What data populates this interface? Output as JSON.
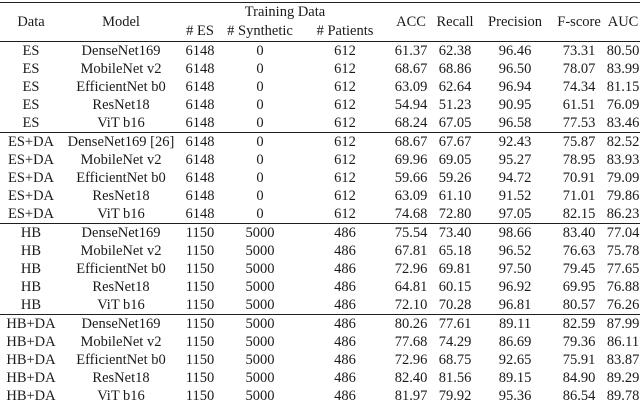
{
  "accent_text_color": "#1a1a1a",
  "background_color": "#ffffff",
  "table": {
    "header": {
      "data": "Data",
      "model": "Model",
      "training_data": "Training Data",
      "num_es": "# ES",
      "num_synthetic": "# Synthetic",
      "num_patients": "# Patients",
      "acc": "ACC",
      "recall": "Recall",
      "precision": "Precision",
      "fscore": "F-score",
      "auc": "AUC"
    },
    "column_keys": [
      "data",
      "model",
      "num_es",
      "num_synthetic",
      "num_patients",
      "acc",
      "recall",
      "precision",
      "fscore",
      "auc"
    ],
    "groups": [
      {
        "name": "ES",
        "rows": [
          [
            "ES",
            "DenseNet169",
            "6148",
            "0",
            "612",
            "61.37",
            "62.38",
            "96.46",
            "73.31",
            "80.50"
          ],
          [
            "ES",
            "MobileNet v2",
            "6148",
            "0",
            "612",
            "68.67",
            "68.86",
            "96.50",
            "78.07",
            "83.99"
          ],
          [
            "ES",
            "EfficientNet b0",
            "6148",
            "0",
            "612",
            "63.09",
            "62.64",
            "96.94",
            "74.34",
            "81.15"
          ],
          [
            "ES",
            "ResNet18",
            "6148",
            "0",
            "612",
            "54.94",
            "51.23",
            "90.95",
            "61.51",
            "76.09"
          ],
          [
            "ES",
            "ViT b16",
            "6148",
            "0",
            "612",
            "68.24",
            "67.05",
            "96.58",
            "77.53",
            "83.46"
          ]
        ]
      },
      {
        "name": "ES+DA",
        "rows": [
          [
            "ES+DA",
            "DenseNet169 [26]",
            "6148",
            "0",
            "612",
            "68.67",
            "67.67",
            "92.43",
            "75.87",
            "82.52"
          ],
          [
            "ES+DA",
            "MobileNet v2",
            "6148",
            "0",
            "612",
            "69.96",
            "69.05",
            "95.27",
            "78.95",
            "83.93"
          ],
          [
            "ES+DA",
            "EfficientNet b0",
            "6148",
            "0",
            "612",
            "59.66",
            "59.26",
            "94.72",
            "70.91",
            "79.09"
          ],
          [
            "ES+DA",
            "ResNet18",
            "6148",
            "0",
            "612",
            "63.09",
            "61.10",
            "91.52",
            "71.01",
            "79.86"
          ],
          [
            "ES+DA",
            "ViT b16",
            "6148",
            "0",
            "612",
            "74.68",
            "72.80",
            "97.05",
            "82.15",
            "86.23"
          ]
        ]
      },
      {
        "name": "HB",
        "rows": [
          [
            "HB",
            "DenseNet169",
            "1150",
            "5000",
            "486",
            "75.54",
            "73.40",
            "98.66",
            "83.40",
            "77.04"
          ],
          [
            "HB",
            "MobileNet v2",
            "1150",
            "5000",
            "486",
            "67.81",
            "65.18",
            "96.52",
            "76.63",
            "75.78"
          ],
          [
            "HB",
            "EfficientNet b0",
            "1150",
            "5000",
            "486",
            "72.96",
            "69.81",
            "97.50",
            "79.45",
            "77.65"
          ],
          [
            "HB",
            "ResNet18",
            "1150",
            "5000",
            "486",
            "64.81",
            "60.15",
            "96.92",
            "69.95",
            "76.88"
          ],
          [
            "HB",
            "ViT b16",
            "1150",
            "5000",
            "486",
            "72.10",
            "70.28",
            "96.81",
            "80.57",
            "76.26"
          ]
        ]
      },
      {
        "name": "HB+DA",
        "rows": [
          [
            "HB+DA",
            "DenseNet169",
            "1150",
            "5000",
            "486",
            "80.26",
            "77.61",
            "89.11",
            "82.59",
            "87.99"
          ],
          [
            "HB+DA",
            "MobileNet v2",
            "1150",
            "5000",
            "486",
            "77.68",
            "74.29",
            "86.69",
            "79.36",
            "86.11"
          ],
          [
            "HB+DA",
            "EfficientNet b0",
            "1150",
            "5000",
            "486",
            "72.96",
            "68.75",
            "92.65",
            "75.91",
            "83.87"
          ],
          [
            "HB+DA",
            "ResNet18",
            "1150",
            "5000",
            "486",
            "82.40",
            "81.56",
            "89.15",
            "84.90",
            "89.29"
          ],
          [
            "HB+DA",
            "ViT b16",
            "1150",
            "5000",
            "486",
            "81.97",
            "79.92",
            "95.36",
            "86.54",
            "89.78"
          ]
        ]
      }
    ],
    "bold_cells": [
      {
        "group": 2,
        "row": 0,
        "col": 7
      },
      {
        "group": 3,
        "row": 3,
        "col": 5
      },
      {
        "group": 3,
        "row": 3,
        "col": 6
      },
      {
        "group": 3,
        "row": 4,
        "col": 8
      },
      {
        "group": 3,
        "row": 4,
        "col": 9
      }
    ]
  }
}
